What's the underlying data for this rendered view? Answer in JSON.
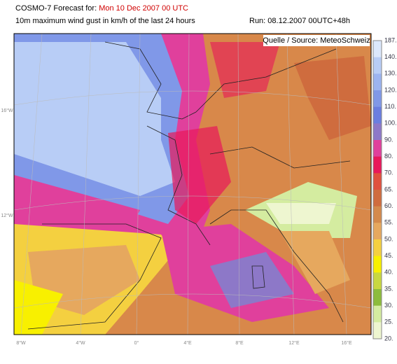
{
  "header": {
    "title_prefix": "COSMO-7 Forecast for:",
    "title_date": "Mon 10 Dec 2007 00 UTC",
    "subtitle": "10m maximum wind gust in km/h of the last 24 hours",
    "run": "Run: 08.12.2007 00UTC+48h"
  },
  "map": {
    "source": "Quelle / Source: MeteoSchweiz",
    "lon_labels": [
      "8°W",
      "4°W",
      "0°",
      "4°E",
      "8°E",
      "12°E",
      "16°E"
    ],
    "lat_labels": [
      "16°W",
      "12°W"
    ]
  },
  "legend": {
    "labels": [
      "187.",
      "140.",
      "130.",
      "120.",
      "110.",
      "100.",
      "90.",
      "80.",
      "70.",
      "65.",
      "60.",
      "55.",
      "50.",
      "45.",
      "40.",
      "35.",
      "30.",
      "25.",
      "20."
    ],
    "colors": [
      "#dce8fc",
      "#b8cdf6",
      "#9cb4f0",
      "#8098e8",
      "#6a7ee0",
      "#8d78c8",
      "#e0409c",
      "#e8185a",
      "#e0503e",
      "#cf6c3e",
      "#d48a4c",
      "#e6a85e",
      "#f4d040",
      "#f8f000",
      "#c8d840",
      "#8cbc3c",
      "#d4eca0",
      "#eef6d0"
    ]
  }
}
